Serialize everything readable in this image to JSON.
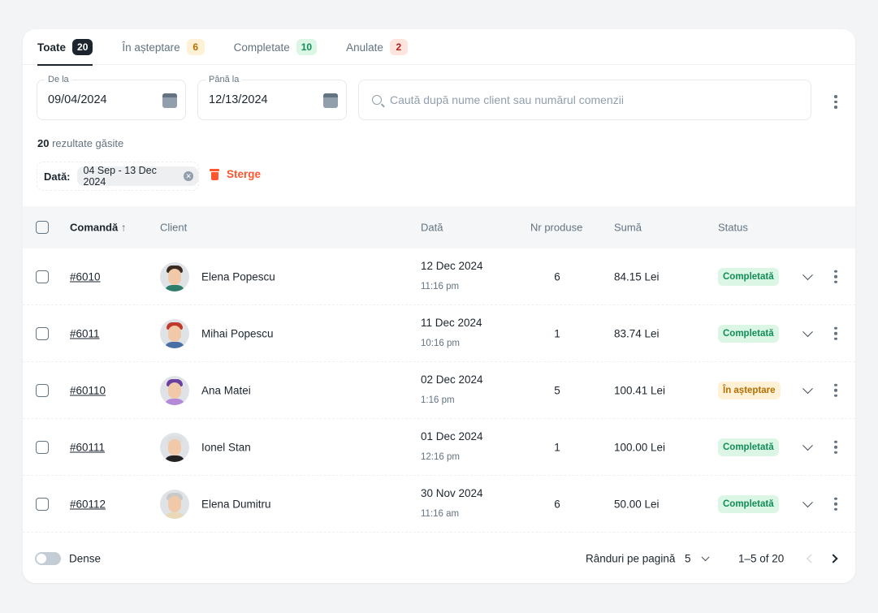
{
  "tabs": [
    {
      "label": "Toate",
      "count": "20",
      "bg": "#1c252e",
      "fg": "#ffffff"
    },
    {
      "label": "În așteptare",
      "count": "6",
      "bg": "#fff1d6",
      "fg": "#b76e00"
    },
    {
      "label": "Completate",
      "count": "10",
      "bg": "#dbf6e5",
      "fg": "#118d57"
    },
    {
      "label": "Anulate",
      "count": "2",
      "bg": "#ffe4de",
      "fg": "#b71d18"
    }
  ],
  "filters": {
    "from_label": "De la",
    "from_value": "09/04/2024",
    "to_label": "Până la",
    "to_value": "12/13/2024",
    "search_placeholder": "Caută după nume client sau numărul comenzii"
  },
  "results": {
    "count": "20",
    "text": " rezultate găsite"
  },
  "chip": {
    "key": "Dată:",
    "value": "04 Sep - 13 Dec 2024",
    "clear_label": "Sterge"
  },
  "table": {
    "headers": {
      "order": "Comandă",
      "client": "Client",
      "date": "Dată",
      "qty": "Nr produse",
      "sum": "Sumă",
      "status": "Status"
    },
    "rows": [
      {
        "id": "#6010",
        "client": "Elena Popescu",
        "date": "12 Dec 2024",
        "time": "11:16 pm",
        "qty": "6",
        "sum": "84.15 Lei",
        "status": "Completată",
        "status_type": "done"
      },
      {
        "id": "#6011",
        "client": "Mihai Popescu",
        "date": "11 Dec 2024",
        "time": "10:16 pm",
        "qty": "1",
        "sum": "83.74 Lei",
        "status": "Completată",
        "status_type": "done"
      },
      {
        "id": "#60110",
        "client": "Ana Matei",
        "date": "02 Dec 2024",
        "time": "1:16 pm",
        "qty": "5",
        "sum": "100.41 Lei",
        "status": "În așteptare",
        "status_type": "pending"
      },
      {
        "id": "#60111",
        "client": "Ionel Stan",
        "date": "01 Dec 2024",
        "time": "12:16 pm",
        "qty": "1",
        "sum": "100.00 Lei",
        "status": "Completată",
        "status_type": "done"
      },
      {
        "id": "#60112",
        "client": "Elena Dumitru",
        "date": "30 Nov 2024",
        "time": "11:16 am",
        "qty": "6",
        "sum": "50.00 Lei",
        "status": "Completată",
        "status_type": "done"
      }
    ]
  },
  "footer": {
    "dense_label": "Dense",
    "rows_per_page_label": "Rânduri pe pagină",
    "rows_per_page": "5",
    "range": "1–5 of 20"
  }
}
